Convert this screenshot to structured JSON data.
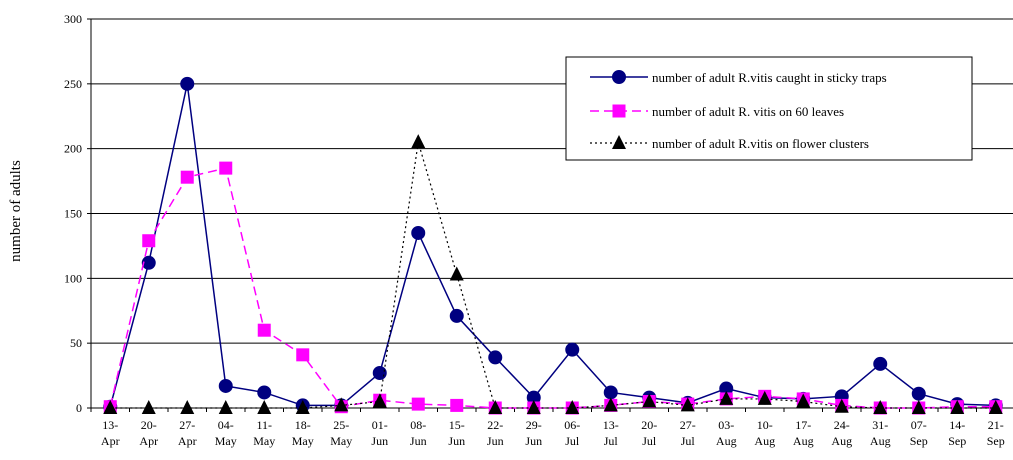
{
  "chart_data": {
    "type": "line",
    "title": "",
    "xlabel": "",
    "ylabel": "number of adults",
    "ylim": [
      0,
      300
    ],
    "yticks": [
      0,
      50,
      100,
      150,
      200,
      250,
      300
    ],
    "grid": "horizontal",
    "legend_position": "top-right",
    "categories": [
      [
        "13-",
        "Apr"
      ],
      [
        "20-",
        "Apr"
      ],
      [
        "27-",
        "Apr"
      ],
      [
        "04-",
        "May"
      ],
      [
        "11-",
        "May"
      ],
      [
        "18-",
        "May"
      ],
      [
        "25-",
        "May"
      ],
      [
        "01-",
        "Jun"
      ],
      [
        "08-",
        "Jun"
      ],
      [
        "15-",
        "Jun"
      ],
      [
        "22-",
        "Jun"
      ],
      [
        "29-",
        "Jun"
      ],
      [
        "06-",
        "Jul"
      ],
      [
        "13-",
        "Jul"
      ],
      [
        "20-",
        "Jul"
      ],
      [
        "27-",
        "Jul"
      ],
      [
        "03-",
        "Aug"
      ],
      [
        "10-",
        "Aug"
      ],
      [
        "17-",
        "Aug"
      ],
      [
        "24-",
        "Aug"
      ],
      [
        "31-",
        "Aug"
      ],
      [
        "07-",
        "Sep"
      ],
      [
        "14-",
        "Sep"
      ],
      [
        "21-",
        "Sep"
      ]
    ],
    "series": [
      {
        "name": "number of adult R.vitis caught in sticky traps",
        "color": "#000080",
        "marker": "circle",
        "line": "solid",
        "values": [
          1,
          112,
          250,
          17,
          12,
          2,
          2,
          27,
          135,
          71,
          39,
          8,
          45,
          12,
          8,
          4,
          15,
          8,
          7,
          9,
          34,
          11,
          3,
          2
        ]
      },
      {
        "name": "number of adult R. vitis on 60 leaves",
        "color": "#ff00ff",
        "marker": "square",
        "line": "dashed",
        "values": [
          1,
          129,
          178,
          185,
          60,
          41,
          1,
          6,
          3,
          2,
          0,
          0,
          0,
          2,
          5,
          3,
          7,
          9,
          7,
          2,
          0,
          0,
          1,
          1
        ]
      },
      {
        "name": "number of adult R.vitis on flower clusters",
        "color": "#000000",
        "marker": "triangle",
        "line": "dotted",
        "values": [
          0,
          0,
          0,
          0,
          0,
          0,
          2,
          5,
          205,
          103,
          0,
          0,
          0,
          2,
          5,
          2,
          7,
          7,
          5,
          1,
          0,
          0,
          0,
          0
        ]
      }
    ]
  }
}
